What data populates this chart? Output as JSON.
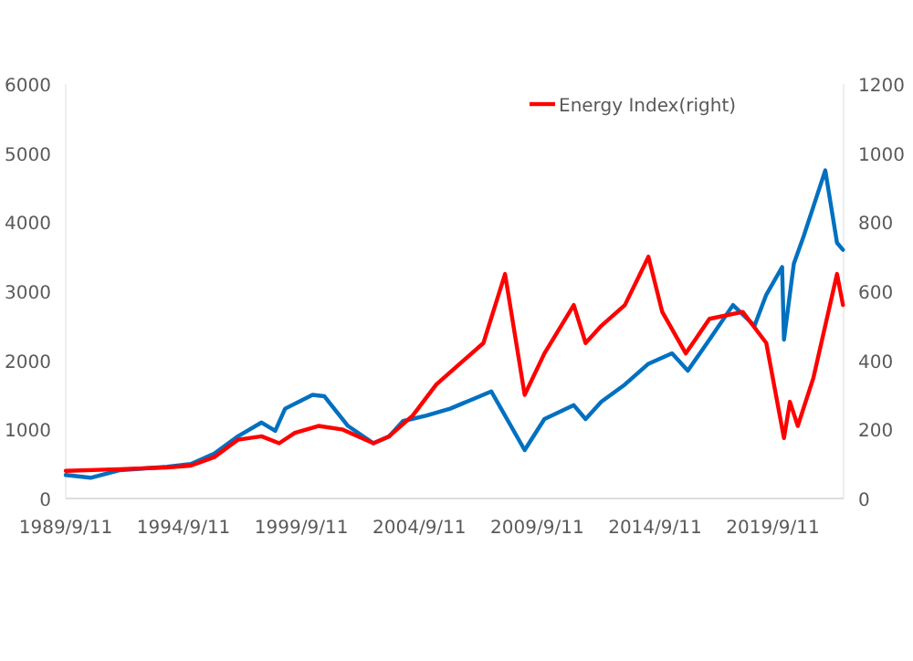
{
  "chart_data": {
    "type": "line",
    "legend": "top",
    "grid": false,
    "line_style": "solid",
    "marker": "none",
    "xlim": [
      "1989-09-11",
      "2022-09-11"
    ],
    "xticks": [
      {
        "value": "1989-09-11",
        "label": "1989/9/11"
      },
      {
        "value": "1994-09-11",
        "label": "1994/9/11"
      },
      {
        "value": "1999-09-11",
        "label": "1999/9/11"
      },
      {
        "value": "2004-09-11",
        "label": "2004/9/11"
      },
      {
        "value": "2009-09-11",
        "label": "2009/9/11"
      },
      {
        "value": "2014-09-11",
        "label": "2014/9/11"
      },
      {
        "value": "2019-09-11",
        "label": "2019/9/11"
      }
    ],
    "ylim": [
      0,
      6000
    ],
    "yticks": [
      0,
      1000,
      2000,
      3000,
      4000,
      5000,
      6000
    ],
    "y2lim": [
      0,
      1200
    ],
    "y2ticks": [
      0,
      200,
      400,
      600,
      800,
      1000,
      1200
    ],
    "series": [
      {
        "color": "#0070c0",
        "x": [
          "1989-09-11",
          "1990-10",
          "1992-01",
          "1994-01",
          "1995-01",
          "1996-01",
          "1997-01",
          "1998-01",
          "1998-08",
          "1999-01",
          "2000-03",
          "2000-09",
          "2001-09",
          "2002-10",
          "2003-06",
          "2004-01",
          "2005-01",
          "2006-01",
          "2007-10",
          "2008-03",
          "2009-03",
          "2010-01",
          "2011-04",
          "2011-10",
          "2012-06",
          "2013-06",
          "2014-06",
          "2015-06",
          "2016-02",
          "2017-01",
          "2018-01",
          "2018-12",
          "2019-06",
          "2020-02",
          "2020-03",
          "2020-08",
          "2021-01",
          "2021-12",
          "2022-06",
          "2022-09"
        ],
        "values": [
          340,
          300,
          410,
          460,
          500,
          650,
          900,
          1100,
          980,
          1300,
          1500,
          1480,
          1050,
          800,
          900,
          1120,
          1200,
          1300,
          1550,
          1300,
          700,
          1150,
          1350,
          1150,
          1400,
          1650,
          1950,
          2100,
          1850,
          2300,
          2800,
          2500,
          2950,
          3350,
          2300,
          3400,
          3800,
          4750,
          3700,
          3600
        ]
      },
      {
        "name": "Energy Index(right)",
        "color": "#ff0000",
        "axis": "y2",
        "x": [
          "1989-09-11",
          "1992-01",
          "1994-01",
          "1995-01",
          "1996-01",
          "1997-01",
          "1998-01",
          "1998-10",
          "1999-06",
          "2000-06",
          "2001-06",
          "2002-10",
          "2003-06",
          "2004-06",
          "2005-06",
          "2006-06",
          "2007-06",
          "2008-05",
          "2009-03",
          "2010-01",
          "2011-04",
          "2011-10",
          "2012-06",
          "2013-06",
          "2014-06",
          "2015-01",
          "2016-01",
          "2017-01",
          "2018-06",
          "2019-06",
          "2020-03",
          "2020-06",
          "2020-10",
          "2021-06",
          "2022-06",
          "2022-09"
        ],
        "values": [
          80,
          85,
          90,
          95,
          120,
          170,
          180,
          160,
          190,
          210,
          200,
          160,
          180,
          240,
          330,
          390,
          450,
          650,
          300,
          420,
          560,
          450,
          500,
          560,
          700,
          540,
          420,
          520,
          540,
          450,
          175,
          280,
          210,
          350,
          650,
          560
        ]
      }
    ]
  }
}
